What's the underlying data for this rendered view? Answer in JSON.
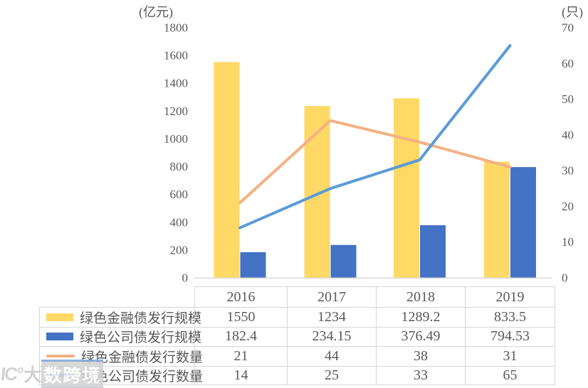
{
  "chart_data": {
    "type": "bar-line-combo",
    "categories": [
      "2016",
      "2017",
      "2018",
      "2019"
    ],
    "series": [
      {
        "name": "绿色金融债发行规模",
        "type": "bar",
        "axis": "left",
        "color": "#FFD966",
        "values": [
          1550,
          1234,
          1289.2,
          833.5
        ]
      },
      {
        "name": "绿色公司债发行规模",
        "type": "bar",
        "axis": "left",
        "color": "#4472C4",
        "values": [
          182.4,
          234.15,
          376.49,
          794.53
        ]
      },
      {
        "name": "绿色金融债发行数量",
        "type": "line",
        "axis": "right",
        "color": "#F4B183",
        "values": [
          21,
          44,
          38,
          31
        ]
      },
      {
        "name": "绿色公司债发行数量",
        "type": "line",
        "axis": "right",
        "color": "#5B9BD5",
        "values": [
          14,
          25,
          33,
          65
        ]
      }
    ],
    "left_axis": {
      "unit": "(亿元)",
      "min": 0,
      "max": 1800,
      "step": 200
    },
    "right_axis": {
      "unit": "(只)",
      "min": 0,
      "max": 70,
      "step": 10
    },
    "grid": false,
    "legend_position": "table-below",
    "axis_text_color": "#595959",
    "baseline_color": "#d9d9d9"
  },
  "watermark": {
    "logo": "IC°",
    "text_plain": "大",
    "text_blocks": "数跨境"
  }
}
